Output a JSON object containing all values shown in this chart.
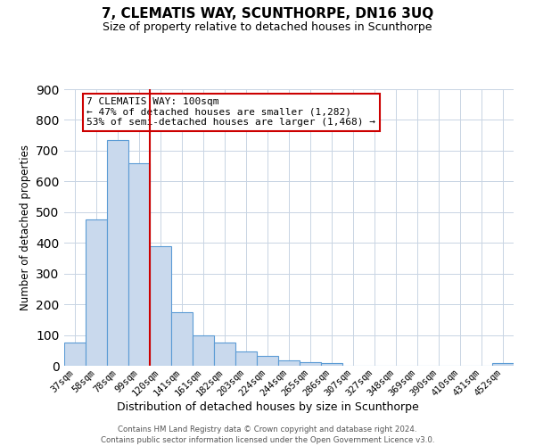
{
  "title": "7, CLEMATIS WAY, SCUNTHORPE, DN16 3UQ",
  "subtitle": "Size of property relative to detached houses in Scunthorpe",
  "xlabel": "Distribution of detached houses by size in Scunthorpe",
  "ylabel": "Number of detached properties",
  "bar_labels": [
    "37sqm",
    "58sqm",
    "78sqm",
    "99sqm",
    "120sqm",
    "141sqm",
    "161sqm",
    "182sqm",
    "203sqm",
    "224sqm",
    "244sqm",
    "265sqm",
    "286sqm",
    "307sqm",
    "327sqm",
    "348sqm",
    "369sqm",
    "390sqm",
    "410sqm",
    "431sqm",
    "452sqm"
  ],
  "bar_values": [
    75,
    475,
    735,
    660,
    390,
    175,
    100,
    75,
    47,
    33,
    18,
    11,
    10,
    0,
    0,
    0,
    0,
    0,
    0,
    0,
    8
  ],
  "bar_color": "#c9d9ed",
  "bar_edge_color": "#5b9bd5",
  "vline_position": 3.5,
  "vline_color": "#cc0000",
  "ylim": [
    0,
    900
  ],
  "yticks": [
    0,
    100,
    200,
    300,
    400,
    500,
    600,
    700,
    800,
    900
  ],
  "annotation_title": "7 CLEMATIS WAY: 100sqm",
  "annotation_line1": "← 47% of detached houses are smaller (1,282)",
  "annotation_line2": "53% of semi-detached houses are larger (1,468) →",
  "annotation_box_color": "#cc0000",
  "grid_color": "#c8d4e3",
  "footer1": "Contains HM Land Registry data © Crown copyright and database right 2024.",
  "footer2": "Contains public sector information licensed under the Open Government Licence v3.0."
}
